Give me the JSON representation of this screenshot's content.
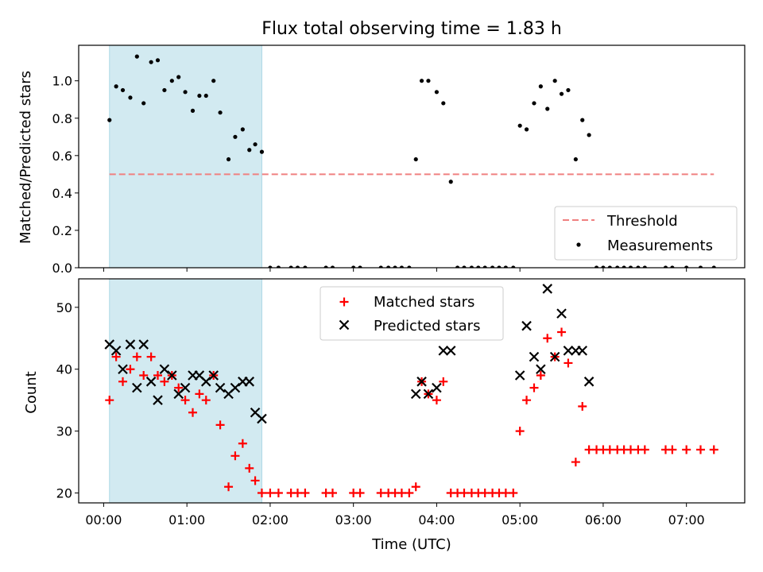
{
  "title": "Flux total observing time = 1.83 h",
  "x_axis": {
    "label": "Time (UTC)",
    "ticks": [
      "00:00",
      "01:00",
      "02:00",
      "03:00",
      "04:00",
      "05:00",
      "06:00",
      "07:00"
    ],
    "tick_values_h": [
      0,
      1,
      2,
      3,
      4,
      5,
      6,
      7
    ]
  },
  "chart_data": [
    {
      "type": "scatter",
      "panel": "top",
      "ylabel": "Matched/Predicted stars",
      "ylim": [
        0,
        1.19
      ],
      "yticks": [
        0.0,
        0.2,
        0.4,
        0.6,
        0.8,
        1.0
      ],
      "xlim_h": [
        -0.3,
        7.7
      ],
      "shaded_interval_h": [
        0.07,
        1.9
      ],
      "shade_color": "#add8e6",
      "threshold": {
        "name": "Threshold",
        "value": 0.5,
        "x_range_h": [
          0.07,
          7.33
        ],
        "color": "#f08080",
        "style": "dashed"
      },
      "legend": {
        "placement": "lower right",
        "entries": [
          "Threshold",
          "Measurements"
        ]
      },
      "series": [
        {
          "name": "Measurements",
          "color": "#000000",
          "marker": "dot",
          "x": [
            0.07,
            0.15,
            0.23,
            0.32,
            0.4,
            0.48,
            0.57,
            0.65,
            0.73,
            0.82,
            0.9,
            0.98,
            1.07,
            1.15,
            1.23,
            1.32,
            1.4,
            1.5,
            1.58,
            1.67,
            1.75,
            1.82,
            1.9,
            2.0,
            2.1,
            2.25,
            2.33,
            2.42,
            2.67,
            2.75,
            3.0,
            3.08,
            3.33,
            3.42,
            3.5,
            3.58,
            3.67,
            3.75,
            3.82,
            3.9,
            4.0,
            4.08,
            4.17,
            4.25,
            4.33,
            4.42,
            4.5,
            4.58,
            4.67,
            4.75,
            4.83,
            4.92,
            5.0,
            5.08,
            5.17,
            5.25,
            5.33,
            5.42,
            5.5,
            5.58,
            5.67,
            5.75,
            5.83,
            5.92,
            6.0,
            6.08,
            6.17,
            6.25,
            6.33,
            6.42,
            6.5,
            6.75,
            6.83,
            7.0,
            7.17,
            7.33
          ],
          "y": [
            0.79,
            0.97,
            0.95,
            0.91,
            1.13,
            0.88,
            1.1,
            1.11,
            0.95,
            1.0,
            1.02,
            0.94,
            0.84,
            0.92,
            0.92,
            1.0,
            0.83,
            0.58,
            0.7,
            0.74,
            0.63,
            0.66,
            0.62,
            0.0,
            0.0,
            0.0,
            0.0,
            0.0,
            0.0,
            0.0,
            0.0,
            0.0,
            0.0,
            0.0,
            0.0,
            0.0,
            0.0,
            0.58,
            1.0,
            1.0,
            0.94,
            0.88,
            0.46,
            0.0,
            0.0,
            0.0,
            0.0,
            0.0,
            0.0,
            0.0,
            0.0,
            0.0,
            0.76,
            0.74,
            0.88,
            0.97,
            0.85,
            1.0,
            0.93,
            0.95,
            0.58,
            0.79,
            0.71,
            0.0,
            0.0,
            0.0,
            0.0,
            0.0,
            0.0,
            0.0,
            0.0,
            0.0,
            0.0,
            0.0,
            0.0,
            0.0
          ]
        }
      ]
    },
    {
      "type": "scatter",
      "panel": "bottom",
      "ylabel": "Count",
      "ylim": [
        18.4,
        54.6
      ],
      "yticks": [
        20,
        30,
        40,
        50
      ],
      "xlim_h": [
        -0.3,
        7.7
      ],
      "shaded_interval_h": [
        0.07,
        1.9
      ],
      "shade_color": "#add8e6",
      "legend": {
        "placement": "upper center",
        "entries": [
          "Matched stars",
          "Predicted stars"
        ]
      },
      "series": [
        {
          "name": "Matched stars",
          "color": "#ff0000",
          "marker": "plus",
          "x": [
            0.07,
            0.15,
            0.23,
            0.32,
            0.4,
            0.48,
            0.57,
            0.65,
            0.73,
            0.82,
            0.9,
            0.98,
            1.07,
            1.15,
            1.23,
            1.32,
            1.4,
            1.5,
            1.58,
            1.67,
            1.75,
            1.82,
            1.9,
            2.0,
            2.1,
            2.25,
            2.33,
            2.42,
            2.67,
            2.75,
            3.0,
            3.08,
            3.33,
            3.42,
            3.5,
            3.58,
            3.67,
            3.75,
            3.82,
            3.9,
            4.0,
            4.08,
            4.17,
            4.25,
            4.33,
            4.42,
            4.5,
            4.58,
            4.67,
            4.75,
            4.83,
            4.92,
            5.0,
            5.08,
            5.17,
            5.25,
            5.33,
            5.42,
            5.5,
            5.58,
            5.67,
            5.75,
            5.83,
            5.92,
            6.0,
            6.08,
            6.17,
            6.25,
            6.33,
            6.42,
            6.5,
            6.75,
            6.83,
            7.0,
            7.17,
            7.33
          ],
          "y": [
            35,
            42,
            38,
            40,
            42,
            39,
            42,
            39,
            38,
            39,
            37,
            35,
            33,
            36,
            35,
            39,
            31,
            21,
            26,
            28,
            24,
            22,
            20,
            20,
            20,
            20,
            20,
            20,
            20,
            20,
            20,
            20,
            20,
            20,
            20,
            20,
            20,
            21,
            38,
            36,
            35,
            38,
            20,
            20,
            20,
            20,
            20,
            20,
            20,
            20,
            20,
            20,
            30,
            35,
            37,
            39,
            45,
            42,
            46,
            41,
            25,
            34,
            27,
            27,
            27,
            27,
            27,
            27,
            27,
            27,
            27,
            27,
            27,
            27,
            27,
            27
          ]
        },
        {
          "name": "Predicted stars",
          "color": "#000000",
          "marker": "x",
          "x": [
            0.07,
            0.15,
            0.23,
            0.32,
            0.4,
            0.48,
            0.57,
            0.65,
            0.73,
            0.82,
            0.9,
            0.98,
            1.07,
            1.15,
            1.23,
            1.32,
            1.4,
            1.5,
            1.58,
            1.67,
            1.75,
            1.82,
            1.9,
            3.75,
            3.82,
            3.9,
            4.0,
            4.08,
            4.17,
            5.0,
            5.08,
            5.17,
            5.25,
            5.33,
            5.42,
            5.5,
            5.58,
            5.67,
            5.75,
            5.83
          ],
          "y": [
            44,
            43,
            40,
            44,
            37,
            44,
            38,
            35,
            40,
            39,
            36,
            37,
            39,
            39,
            38,
            39,
            37,
            36,
            37,
            38,
            38,
            33,
            32,
            36,
            38,
            36,
            37,
            43,
            43,
            39,
            47,
            42,
            40,
            53,
            42,
            49,
            43,
            43,
            43,
            38
          ]
        }
      ]
    }
  ]
}
